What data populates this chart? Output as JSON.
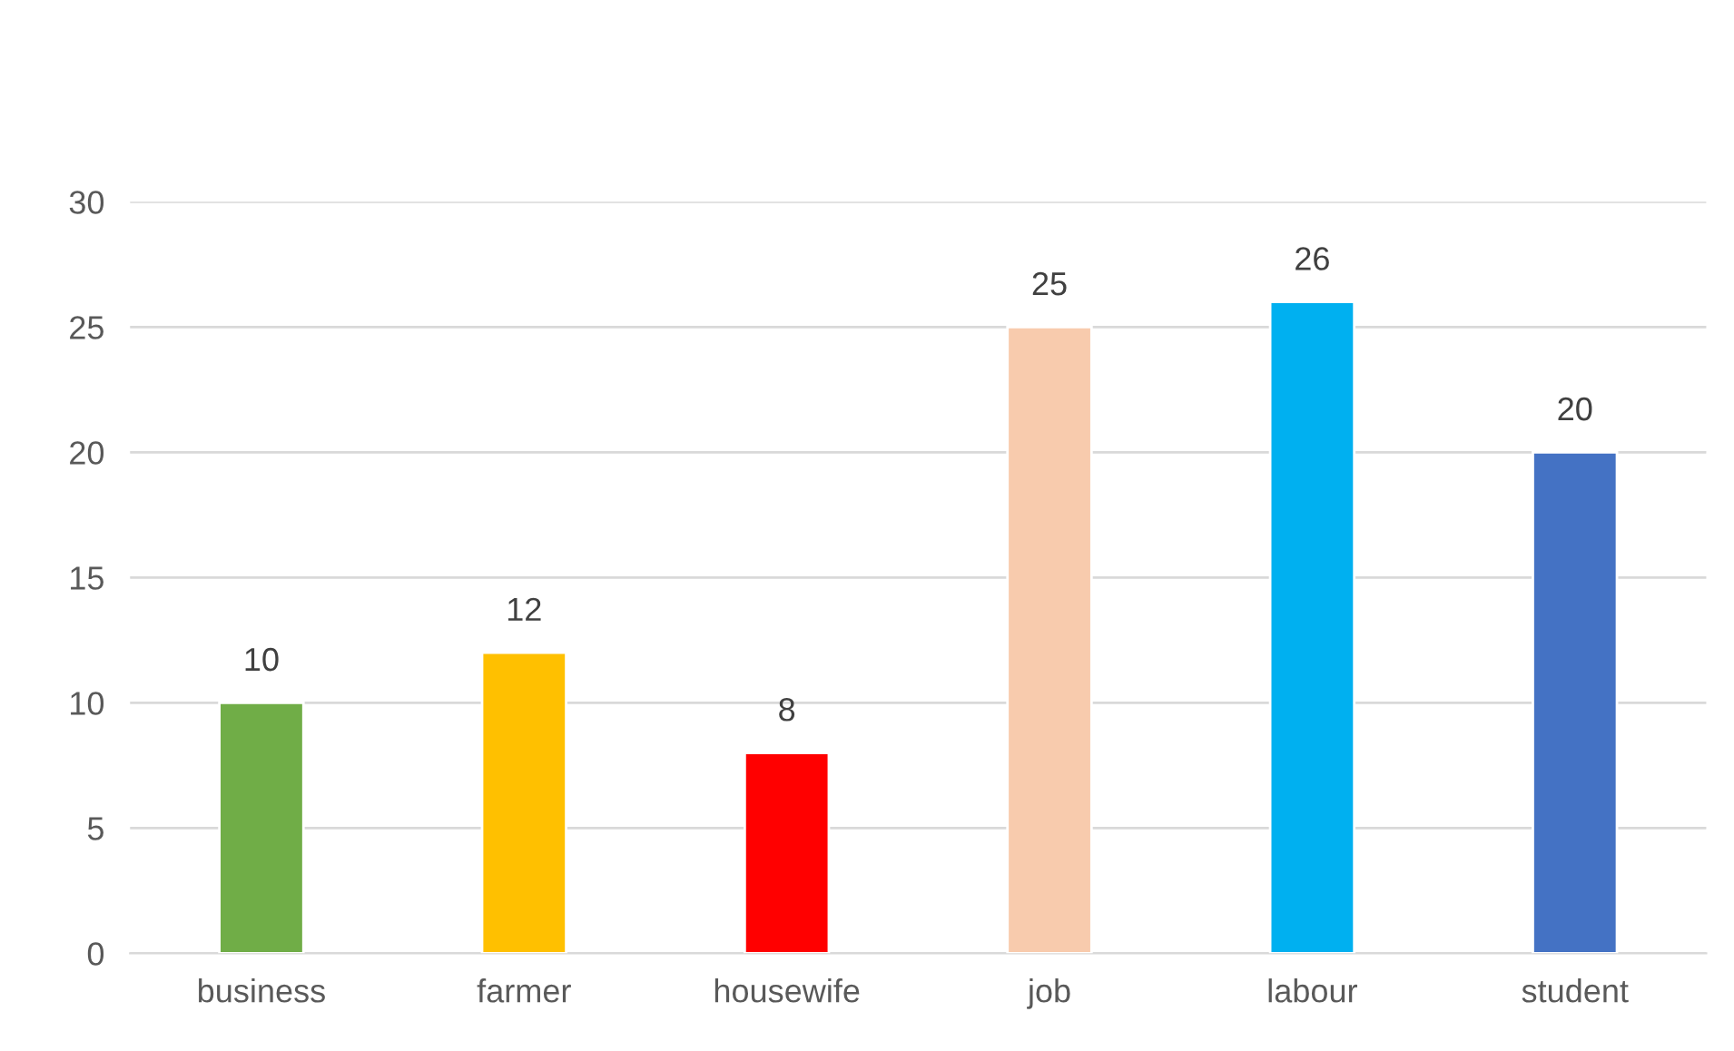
{
  "chart_data": {
    "type": "bar",
    "categories": [
      "business",
      "farmer",
      "housewife",
      "job",
      "labour",
      "student"
    ],
    "values": [
      10,
      12,
      8,
      25,
      26,
      20
    ],
    "colors": [
      "#70ad47",
      "#ffc000",
      "#ff0000",
      "#f8cbad",
      "#00b0f0",
      "#4472c4"
    ],
    "ylim": [
      0,
      30
    ],
    "yticks": [
      0,
      5,
      10,
      15,
      20,
      25,
      30
    ],
    "grid": "y",
    "data_labels": true
  }
}
